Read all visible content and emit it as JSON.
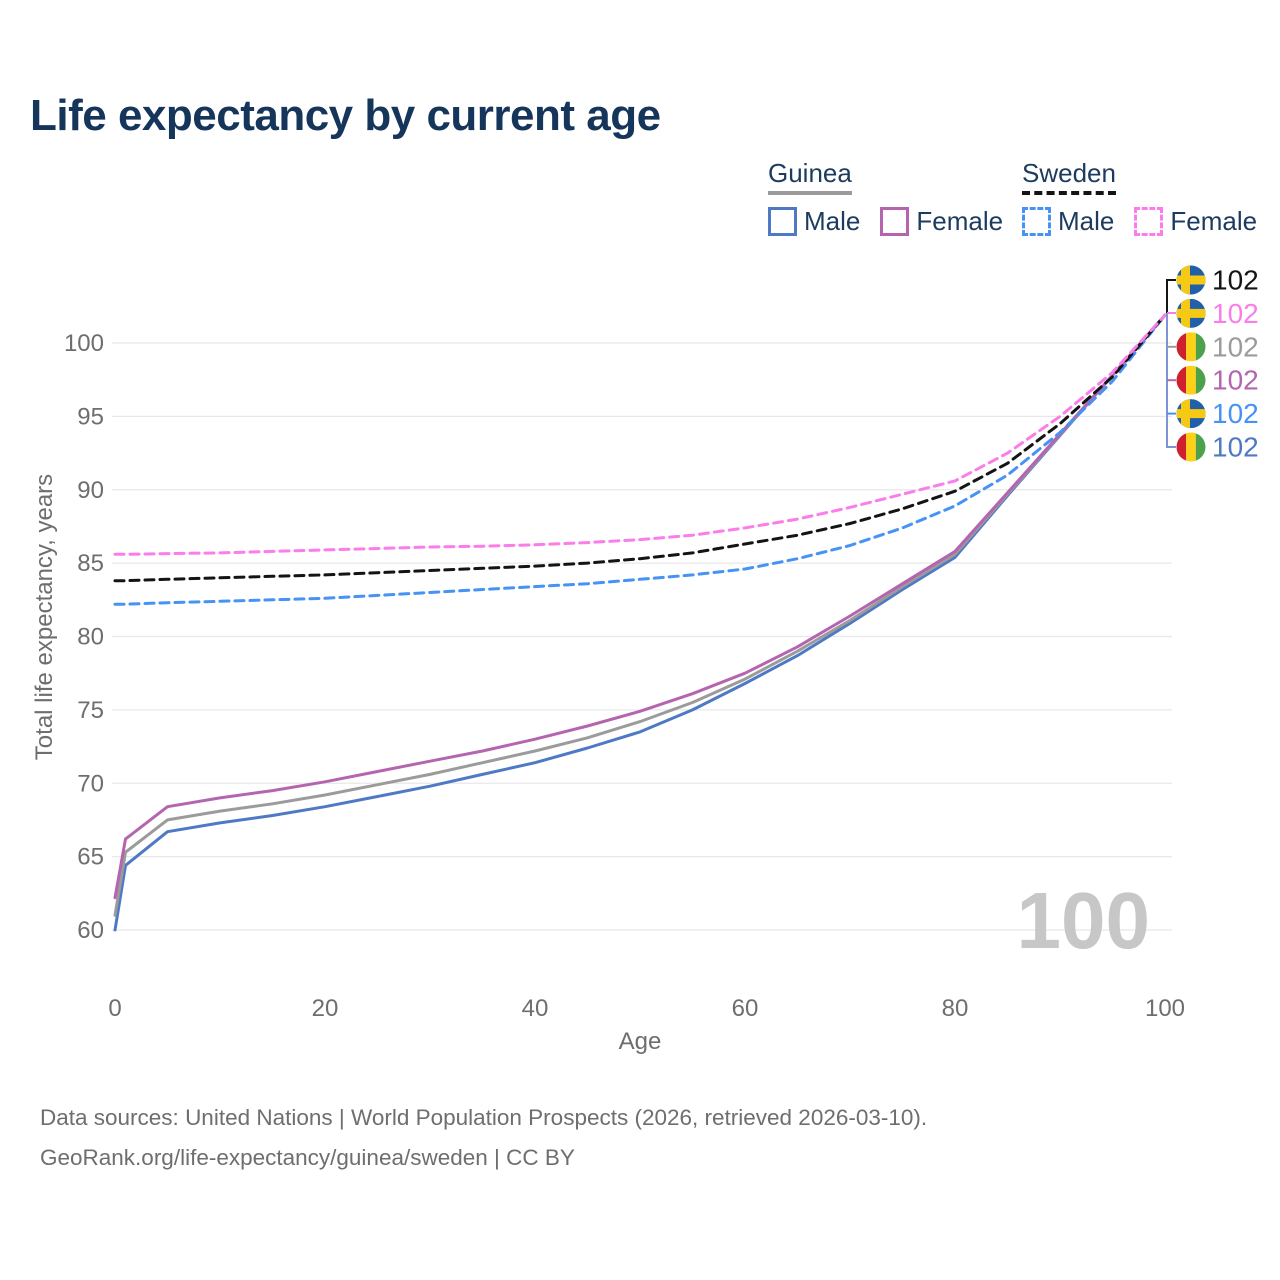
{
  "title": "Life expectancy by current age",
  "legend": {
    "groups": [
      {
        "name": "Guinea",
        "style": "solid",
        "underline_color": "#9b9b9b",
        "items": [
          {
            "label": "Male",
            "color": "#4e79c4"
          },
          {
            "label": "Female",
            "color": "#b565af"
          }
        ]
      },
      {
        "name": "Sweden",
        "style": "dashed",
        "underline_color": "#141414",
        "items": [
          {
            "label": "Male",
            "color": "#4792f5"
          },
          {
            "label": "Female",
            "color": "#fb7de9"
          }
        ]
      }
    ]
  },
  "axes": {
    "y_title": "Total life expectancy, years",
    "x_title": "Age"
  },
  "age_indicator": "100",
  "footer": {
    "line1": "Data sources: United Nations | World Population Prospects (2026, retrieved 2026-03-10).",
    "line2": "GeoRank.org/life-expectancy/guinea/sweden | CC BY"
  },
  "chart_data": {
    "type": "line",
    "title": "Life expectancy by current age",
    "xlabel": "Age",
    "ylabel": "Total life expectancy, years",
    "xlim": [
      0,
      100
    ],
    "ylim": [
      58.5,
      103
    ],
    "xticks": [
      0,
      20,
      40,
      60,
      80,
      100
    ],
    "yticks": [
      60,
      65,
      70,
      75,
      80,
      85,
      90,
      95,
      100
    ],
    "grid": "horizontal",
    "legend_position": "top-right",
    "x": [
      0,
      1,
      5,
      10,
      15,
      20,
      25,
      30,
      35,
      40,
      45,
      50,
      55,
      60,
      65,
      70,
      75,
      80,
      85,
      90,
      95,
      100
    ],
    "series": [
      {
        "id": "guinea-male",
        "country": "Guinea",
        "sex": "Male",
        "color": "#4e79c4",
        "dashed": false,
        "values": [
          60.0,
          64.4,
          66.7,
          67.3,
          67.8,
          68.4,
          69.1,
          69.8,
          70.6,
          71.4,
          72.4,
          73.5,
          75.0,
          76.8,
          78.7,
          80.9,
          83.2,
          85.4,
          89.6,
          93.7,
          97.8,
          101.9
        ]
      },
      {
        "id": "guinea-total",
        "country": "Guinea",
        "sex": "Both",
        "color": "#9b9b9b",
        "dashed": false,
        "values": [
          61.0,
          65.3,
          67.5,
          68.1,
          68.6,
          69.2,
          69.9,
          70.6,
          71.4,
          72.2,
          73.1,
          74.2,
          75.5,
          77.1,
          79.0,
          81.1,
          83.4,
          85.6,
          89.7,
          93.75,
          97.8,
          101.9
        ]
      },
      {
        "id": "guinea-female",
        "country": "Guinea",
        "sex": "Female",
        "color": "#b565af",
        "dashed": false,
        "values": [
          62.2,
          66.2,
          68.4,
          69.0,
          69.5,
          70.1,
          70.8,
          71.5,
          72.2,
          73.0,
          73.9,
          74.9,
          76.1,
          77.5,
          79.3,
          81.4,
          83.6,
          85.8,
          89.8,
          93.8,
          97.8,
          101.9
        ]
      },
      {
        "id": "sweden-male",
        "country": "Sweden",
        "sex": "Male",
        "color": "#4792f5",
        "dashed": true,
        "values": [
          82.2,
          82.2,
          82.3,
          82.4,
          82.5,
          82.6,
          82.8,
          83.0,
          83.2,
          83.4,
          83.6,
          83.9,
          84.2,
          84.6,
          85.3,
          86.2,
          87.4,
          88.9,
          91.0,
          93.9,
          97.4,
          101.9
        ]
      },
      {
        "id": "sweden-total",
        "country": "Sweden",
        "sex": "Both",
        "color": "#141414",
        "dashed": true,
        "values": [
          83.8,
          83.8,
          83.9,
          84.0,
          84.1,
          84.2,
          84.35,
          84.5,
          84.65,
          84.8,
          85.0,
          85.3,
          85.7,
          86.3,
          86.9,
          87.7,
          88.7,
          89.9,
          91.8,
          94.5,
          97.7,
          101.9
        ]
      },
      {
        "id": "sweden-female",
        "country": "Sweden",
        "sex": "Female",
        "color": "#fb7de9",
        "dashed": true,
        "values": [
          85.6,
          85.6,
          85.65,
          85.7,
          85.8,
          85.9,
          86.0,
          86.1,
          86.15,
          86.25,
          86.4,
          86.6,
          86.9,
          87.4,
          88.0,
          88.8,
          89.7,
          90.6,
          92.5,
          95.0,
          98.0,
          101.9
        ]
      }
    ],
    "end_labels": [
      {
        "flag": "sweden",
        "value": "102",
        "color": "#141414"
      },
      {
        "flag": "sweden",
        "value": "102",
        "color": "#fb7de9"
      },
      {
        "flag": "guinea",
        "value": "102",
        "color": "#9b9b9b"
      },
      {
        "flag": "guinea",
        "value": "102",
        "color": "#b565af"
      },
      {
        "flag": "sweden",
        "value": "102",
        "color": "#4792f5"
      },
      {
        "flag": "guinea",
        "value": "102",
        "color": "#4e79c4"
      }
    ],
    "connector_descender_color": "#7e93d6",
    "colors": {
      "title_text": "#16355a",
      "axis_text": "#6e6e6e",
      "gridline": "#e8e8e8",
      "watermark": "#c7c7c7",
      "flag_sweden_blue": "#2160a8",
      "flag_sweden_yellow": "#f6c915",
      "flag_guinea_red": "#cf2030",
      "flag_guinea_yellow": "#fcd116",
      "flag_guinea_green": "#4da14a"
    }
  }
}
